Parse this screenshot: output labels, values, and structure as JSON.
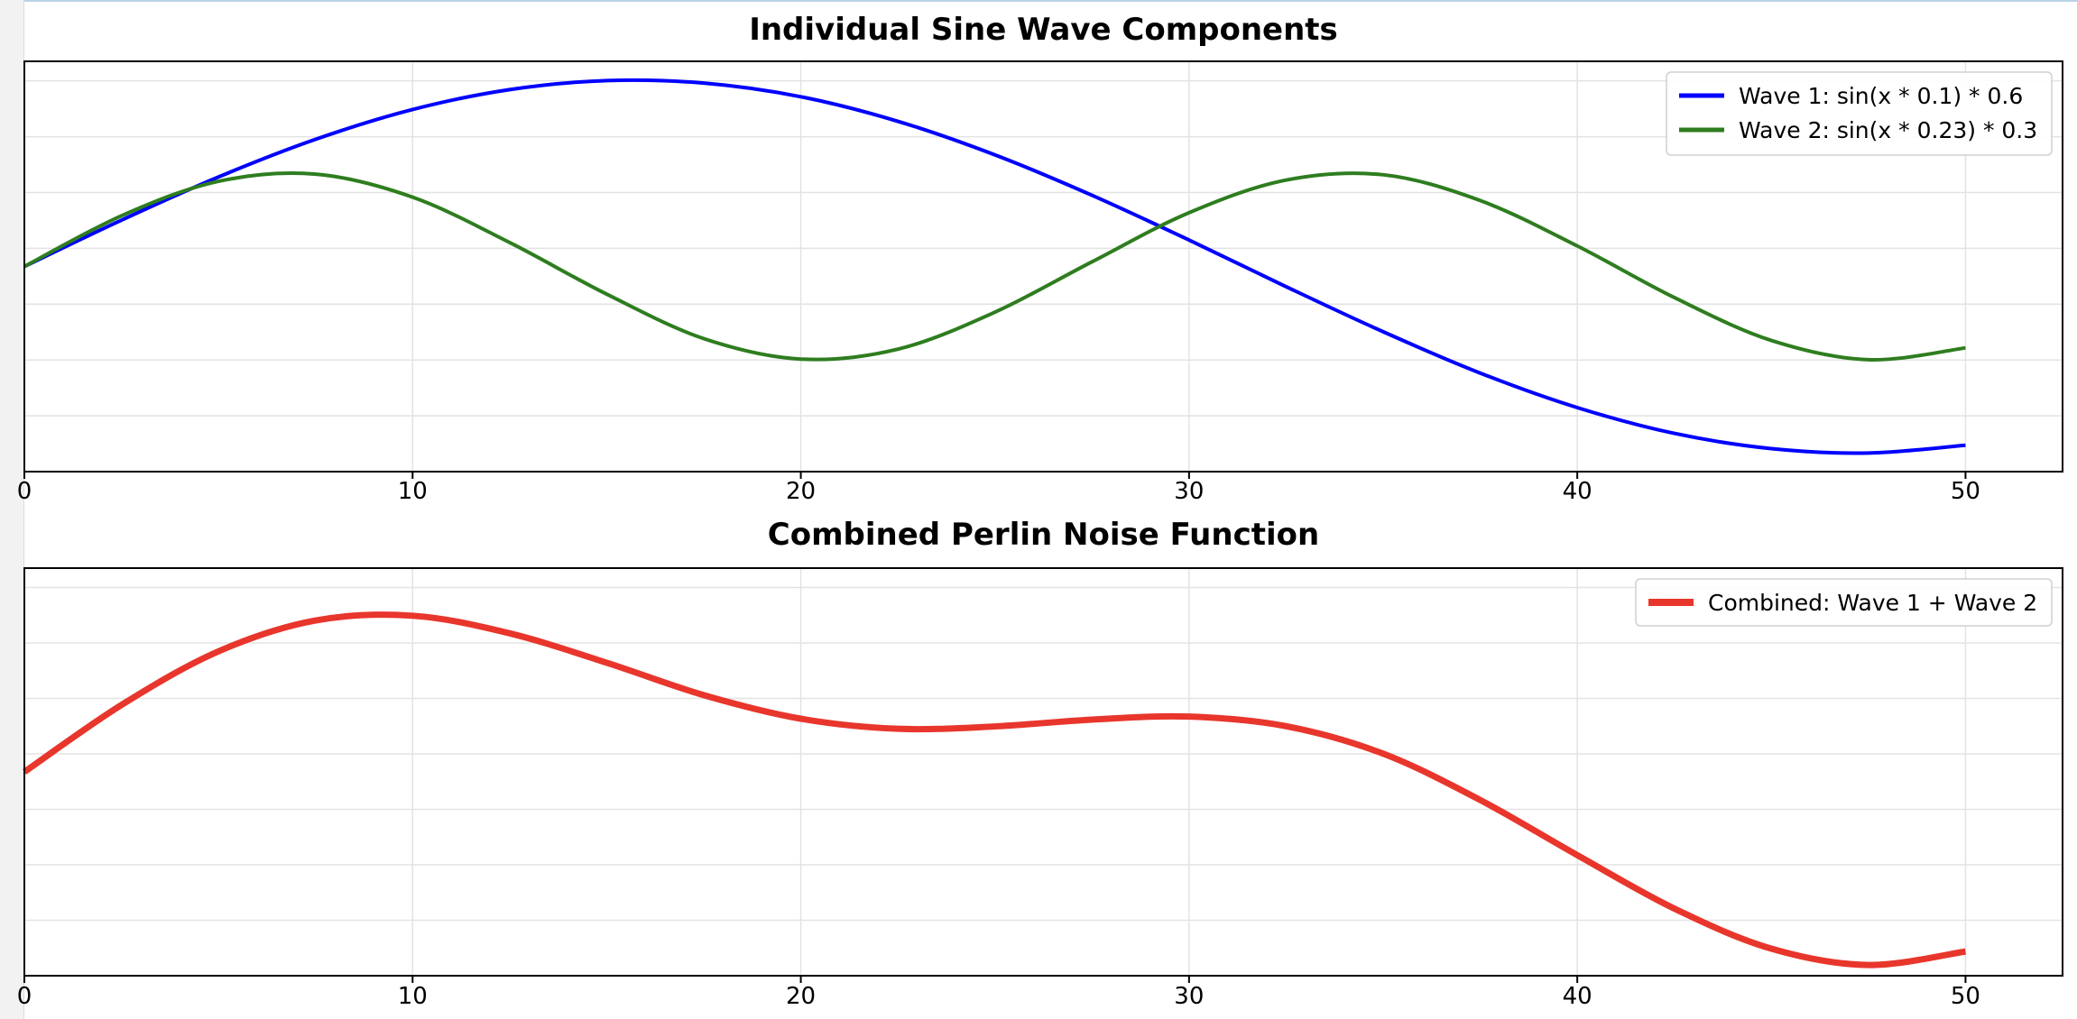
{
  "chart_data": [
    {
      "type": "line",
      "title": "Individual Sine Wave Components",
      "xlim": [
        0,
        52.5
      ],
      "ylim": [
        -0.66,
        0.66
      ],
      "x_ticks": [
        "0",
        "10",
        "20",
        "30",
        "40",
        "50"
      ],
      "grid": true,
      "legend_position": "top-right",
      "series": [
        {
          "name": "Wave 1: sin(x * 0.1) * 0.6",
          "color": "#0000ff",
          "x": [
            0,
            2.5,
            5,
            7.5,
            10,
            12.5,
            15,
            17.5,
            20,
            22.5,
            25,
            27.5,
            30,
            32.5,
            35,
            37.5,
            40,
            42.5,
            45,
            47.5,
            50
          ],
          "values": [
            0,
            0.149,
            0.288,
            0.409,
            0.505,
            0.569,
            0.598,
            0.59,
            0.546,
            0.467,
            0.359,
            0.229,
            0.085,
            -0.065,
            -0.21,
            -0.343,
            -0.454,
            -0.537,
            -0.586,
            -0.6,
            -0.575
          ]
        },
        {
          "name": "Wave 2: sin(x * 0.23) * 0.3",
          "color": "#2e7d1f",
          "x": [
            0,
            2.5,
            5,
            7.5,
            10,
            12.5,
            15,
            17.5,
            20,
            22.5,
            25,
            27.5,
            30,
            32.5,
            35,
            37.5,
            40,
            42.5,
            45,
            47.5,
            50
          ],
          "values": [
            0,
            0.163,
            0.274,
            0.297,
            0.223,
            0.077,
            -0.089,
            -0.232,
            -0.298,
            -0.266,
            -0.147,
            0.015,
            0.173,
            0.278,
            0.295,
            0.212,
            0.066,
            -0.1,
            -0.238,
            -0.3,
            -0.262
          ]
        }
      ]
    },
    {
      "type": "line",
      "title": "Combined Perlin Noise Function",
      "xlim": [
        0,
        52.5
      ],
      "ylim": [
        -0.95,
        0.95
      ],
      "x_ticks": [
        "0",
        "10",
        "20",
        "30",
        "40",
        "50"
      ],
      "grid": true,
      "legend_position": "top-right",
      "series": [
        {
          "name": "Combined: Wave 1 + Wave 2",
          "color": "#e8362c",
          "x": [
            0,
            2.5,
            5,
            7.5,
            10,
            12.5,
            15,
            17.5,
            20,
            22.5,
            25,
            27.5,
            30,
            32.5,
            35,
            37.5,
            40,
            42.5,
            45,
            47.5,
            50
          ],
          "values": [
            0,
            0.312,
            0.562,
            0.706,
            0.728,
            0.646,
            0.509,
            0.358,
            0.248,
            0.201,
            0.212,
            0.244,
            0.258,
            0.213,
            0.085,
            -0.131,
            -0.388,
            -0.637,
            -0.824,
            -0.9,
            -0.837
          ]
        }
      ]
    }
  ]
}
